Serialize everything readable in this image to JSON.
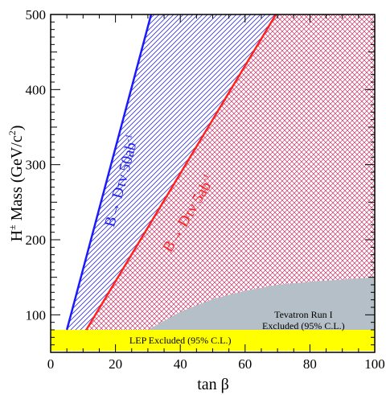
{
  "chart_data": {
    "type": "area",
    "xlabel": "tan β",
    "ylabel": "H± Mass (GeV/c²)",
    "ylabel_parts": {
      "base": "H",
      "sup": "±",
      "rest": " Mass (GeV/c",
      "unit_sup": "2",
      "close": ")"
    },
    "xlim": [
      0,
      100
    ],
    "ylim": [
      50,
      500
    ],
    "xticks": [
      0,
      20,
      40,
      60,
      80,
      100
    ],
    "yticks": [
      100,
      200,
      300,
      400,
      500
    ],
    "grid": false,
    "series": [
      {
        "name": "B→ Dτν 50ab⁻¹",
        "label_parts": {
          "arrow": "B→ Dτν 50ab",
          "sup": "-1"
        },
        "color": "#1a1aff",
        "x": [
          5,
          31
        ],
        "y": [
          80,
          500
        ]
      },
      {
        "name": "B→ Dτν 5ab⁻¹",
        "label_parts": {
          "arrow": "B→ Dτν 5ab",
          "sup": "-1"
        },
        "color": "#ff2020",
        "x": [
          11,
          69.5
        ],
        "y": [
          80,
          500
        ]
      }
    ],
    "regions": [
      {
        "name": "LEP Excluded (95% C.L.)",
        "color": "#ffff00",
        "y_range": [
          52,
          80
        ]
      },
      {
        "name": "Tevatron Run I",
        "name_line2": "Excluded (95% C.L.)",
        "color": "#b5bfc8",
        "boundary_x": [
          30,
          40,
          50,
          60,
          70,
          80,
          90,
          100
        ],
        "boundary_y": [
          80,
          104,
          121,
          132,
          140,
          144,
          147,
          150
        ]
      }
    ],
    "colors": {
      "blue_hatch": "#3333cc",
      "red_hatch": "#cc3366"
    }
  }
}
